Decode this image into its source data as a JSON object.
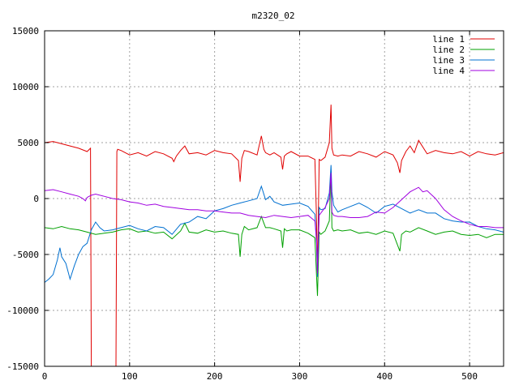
{
  "chart_data": {
    "type": "line",
    "title": "m2320_02",
    "xlabel": "",
    "ylabel": "",
    "xlim": [
      0,
      540
    ],
    "ylim": [
      -15000,
      15000
    ],
    "xticks": [
      0,
      100,
      200,
      300,
      400,
      500
    ],
    "yticks": [
      -15000,
      -10000,
      -5000,
      0,
      5000,
      10000,
      15000
    ],
    "grid": true,
    "legend_position": "top-right",
    "series": [
      {
        "name": "line 1",
        "color": "#e00000",
        "x": [
          0,
          10,
          20,
          30,
          40,
          50,
          54,
          55,
          56,
          60,
          70,
          80,
          84,
          85,
          86,
          90,
          100,
          110,
          120,
          130,
          140,
          150,
          152,
          155,
          160,
          165,
          170,
          180,
          190,
          200,
          210,
          220,
          228,
          230,
          232,
          235,
          240,
          250,
          255,
          258,
          260,
          265,
          270,
          278,
          280,
          282,
          285,
          290,
          300,
          310,
          318,
          320,
          321,
          323,
          325,
          330,
          335,
          337,
          338,
          340,
          345,
          350,
          360,
          370,
          380,
          390,
          400,
          410,
          415,
          418,
          420,
          425,
          430,
          435,
          440,
          450,
          460,
          470,
          480,
          490,
          500,
          510,
          520,
          530,
          540
        ],
        "y": [
          5000,
          5100,
          4900,
          4700,
          4500,
          4200,
          4500,
          -15000,
          -15000,
          -15000,
          -15000,
          -15000,
          -15000,
          4200,
          4400,
          4300,
          3900,
          4100,
          3800,
          4200,
          4000,
          3600,
          3300,
          3800,
          4300,
          4700,
          4000,
          4100,
          3900,
          4300,
          4100,
          4000,
          3400,
          1500,
          3600,
          4300,
          4200,
          3900,
          5600,
          4400,
          4100,
          3900,
          4100,
          3700,
          2600,
          3800,
          4000,
          4200,
          3800,
          3800,
          3500,
          -2000,
          -7000,
          3500,
          3400,
          3700,
          5000,
          8400,
          4500,
          3900,
          3800,
          3900,
          3800,
          4200,
          4000,
          3700,
          4200,
          3900,
          3200,
          2300,
          3400,
          4200,
          4700,
          4100,
          5200,
          4000,
          4300,
          4100,
          4000,
          4200,
          3800,
          4200,
          4000,
          3900,
          4100
        ]
      },
      {
        "name": "line 2",
        "color": "#00a000",
        "x": [
          0,
          10,
          20,
          30,
          40,
          50,
          60,
          70,
          80,
          90,
          100,
          110,
          120,
          130,
          140,
          150,
          160,
          165,
          170,
          180,
          190,
          200,
          210,
          220,
          228,
          230,
          232,
          235,
          240,
          250,
          255,
          258,
          260,
          265,
          270,
          278,
          280,
          282,
          285,
          290,
          300,
          310,
          318,
          320,
          321,
          323,
          325,
          330,
          335,
          337,
          338,
          340,
          345,
          350,
          360,
          370,
          380,
          390,
          400,
          410,
          418,
          420,
          425,
          430,
          440,
          450,
          460,
          470,
          480,
          490,
          500,
          510,
          520,
          530,
          540
        ],
        "y": [
          -2600,
          -2700,
          -2500,
          -2700,
          -2800,
          -3000,
          -3200,
          -3100,
          -3000,
          -2800,
          -2700,
          -3000,
          -2900,
          -3100,
          -3000,
          -3600,
          -2900,
          -2200,
          -3000,
          -3100,
          -2800,
          -3000,
          -2900,
          -3100,
          -3200,
          -5200,
          -3200,
          -2500,
          -2800,
          -2600,
          -1600,
          -2200,
          -2600,
          -2600,
          -2700,
          -2900,
          -4400,
          -2700,
          -2900,
          -2800,
          -2800,
          -3100,
          -3500,
          -7000,
          -8700,
          -3000,
          -3200,
          -2900,
          -2000,
          2500,
          -2600,
          -2900,
          -2800,
          -2900,
          -2800,
          -3100,
          -3000,
          -3200,
          -2900,
          -3100,
          -4700,
          -3200,
          -2900,
          -3000,
          -2600,
          -2900,
          -3200,
          -3000,
          -2900,
          -3200,
          -3300,
          -3200,
          -3500,
          -3200,
          -3200
        ]
      },
      {
        "name": "line 3",
        "color": "#0070d0",
        "x": [
          0,
          5,
          10,
          15,
          18,
          20,
          25,
          30,
          35,
          40,
          45,
          50,
          55,
          60,
          65,
          70,
          80,
          90,
          100,
          110,
          120,
          130,
          140,
          150,
          160,
          170,
          180,
          190,
          200,
          210,
          220,
          230,
          240,
          250,
          255,
          260,
          265,
          270,
          280,
          290,
          300,
          310,
          318,
          320,
          321,
          323,
          325,
          330,
          335,
          337,
          338,
          340,
          345,
          350,
          360,
          370,
          380,
          390,
          400,
          410,
          420,
          430,
          440,
          450,
          460,
          470,
          480,
          490,
          500,
          510,
          520,
          530,
          540
        ],
        "y": [
          -7500,
          -7200,
          -6800,
          -5500,
          -4400,
          -5200,
          -5800,
          -7200,
          -6000,
          -5000,
          -4300,
          -4000,
          -2800,
          -2100,
          -2600,
          -2900,
          -2800,
          -2600,
          -2400,
          -2700,
          -2900,
          -2500,
          -2600,
          -3200,
          -2300,
          -2100,
          -1600,
          -1800,
          -1100,
          -900,
          -600,
          -400,
          -200,
          0,
          1100,
          -100,
          200,
          -300,
          -600,
          -500,
          -400,
          -700,
          -1400,
          -4000,
          -7000,
          -800,
          -1000,
          -900,
          500,
          3000,
          600,
          -600,
          -1200,
          -1000,
          -700,
          -400,
          -800,
          -1300,
          -700,
          -500,
          -900,
          -1300,
          -1000,
          -1300,
          -1300,
          -1800,
          -2000,
          -2100,
          -2100,
          -2500,
          -2700,
          -2800,
          -3000
        ]
      },
      {
        "name": "line 4",
        "color": "#a000e0",
        "x": [
          0,
          10,
          20,
          30,
          40,
          45,
          48,
          50,
          55,
          60,
          70,
          80,
          90,
          100,
          110,
          120,
          130,
          140,
          150,
          160,
          170,
          180,
          190,
          200,
          210,
          220,
          230,
          240,
          250,
          260,
          270,
          280,
          290,
          300,
          310,
          318,
          320,
          321,
          323,
          325,
          330,
          335,
          337,
          338,
          340,
          345,
          350,
          360,
          370,
          380,
          390,
          400,
          410,
          420,
          430,
          440,
          445,
          450,
          460,
          470,
          480,
          490,
          500,
          510,
          520,
          530,
          540
        ],
        "y": [
          700,
          800,
          600,
          400,
          200,
          0,
          -200,
          100,
          300,
          400,
          200,
          0,
          -100,
          -300,
          -400,
          -600,
          -500,
          -700,
          -800,
          -900,
          -1000,
          -1000,
          -1100,
          -1100,
          -1200,
          -1300,
          -1300,
          -1500,
          -1600,
          -1700,
          -1500,
          -1600,
          -1700,
          -1600,
          -1500,
          -2000,
          -3800,
          -6700,
          -1500,
          -1300,
          -800,
          0,
          2300,
          -1200,
          -1500,
          -1600,
          -1600,
          -1700,
          -1700,
          -1600,
          -1200,
          -1300,
          -800,
          -100,
          600,
          1000,
          600,
          700,
          0,
          -1000,
          -1600,
          -2000,
          -2300,
          -2500,
          -2500,
          -2600,
          -2600
        ]
      }
    ]
  }
}
